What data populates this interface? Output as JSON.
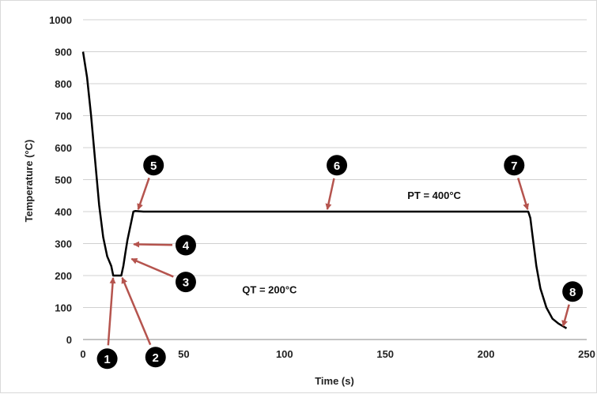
{
  "chart_data": {
    "type": "line",
    "title": "",
    "xlabel": "Time (s)",
    "ylabel": "Temperature (°C)",
    "xlim": [
      0,
      250
    ],
    "ylim": [
      0,
      1000
    ],
    "xticks": [
      0,
      50,
      100,
      150,
      200,
      250
    ],
    "yticks": [
      0,
      100,
      200,
      300,
      400,
      500,
      600,
      700,
      800,
      900,
      1000
    ],
    "grid": "horizontal",
    "legend": "none",
    "series": [
      {
        "color": "#000000",
        "x": [
          0,
          2,
          4,
          6,
          8,
          10,
          12,
          14,
          15,
          16,
          18,
          19,
          20,
          21,
          22,
          24,
          25,
          26,
          30,
          100,
          200,
          221,
          222,
          223,
          225,
          227,
          230,
          233,
          236,
          240
        ],
        "y": [
          900,
          820,
          700,
          560,
          420,
          320,
          260,
          230,
          200,
          200,
          200,
          200,
          230,
          270,
          310,
          370,
          400,
          402,
          400,
          400,
          400,
          400,
          380,
          330,
          230,
          160,
          100,
          65,
          50,
          35
        ]
      }
    ],
    "annotations": [
      {
        "num": "1",
        "point": [
          15,
          200
        ],
        "badge": [
          12,
          -60
        ],
        "color": "#000000",
        "arrow_color": "#b5544e"
      },
      {
        "num": "2",
        "point": [
          19,
          200
        ],
        "badge": [
          36,
          -55
        ],
        "color": "#000000",
        "arrow_color": "#b5544e"
      },
      {
        "num": "3",
        "point": [
          23,
          255
        ],
        "badge": [
          51,
          180
        ],
        "color": "#000000",
        "arrow_color": "#b5544e"
      },
      {
        "num": "4",
        "point": [
          24,
          298
        ],
        "badge": [
          51,
          295
        ],
        "color": "#000000",
        "arrow_color": "#b5544e"
      },
      {
        "num": "5",
        "point": [
          27,
          400
        ],
        "badge": [
          35,
          545
        ],
        "color": "#000000",
        "arrow_color": "#b5544e"
      },
      {
        "num": "6",
        "point": [
          121,
          400
        ],
        "badge": [
          126,
          545
        ],
        "color": "#000000",
        "arrow_color": "#b5544e"
      },
      {
        "num": "7",
        "point": [
          221,
          400
        ],
        "badge": [
          214,
          545
        ],
        "color": "#000000",
        "arrow_color": "#b5544e"
      },
      {
        "num": "8",
        "point": [
          238,
          35
        ],
        "badge": [
          243,
          150
        ],
        "color": "#000000",
        "arrow_color": "#b5544e"
      }
    ],
    "text_annotations": [
      {
        "text": "PT = 400°C",
        "x": 161,
        "y": 440
      },
      {
        "text": "QT = 200°C",
        "x": 79,
        "y": 145
      }
    ]
  }
}
